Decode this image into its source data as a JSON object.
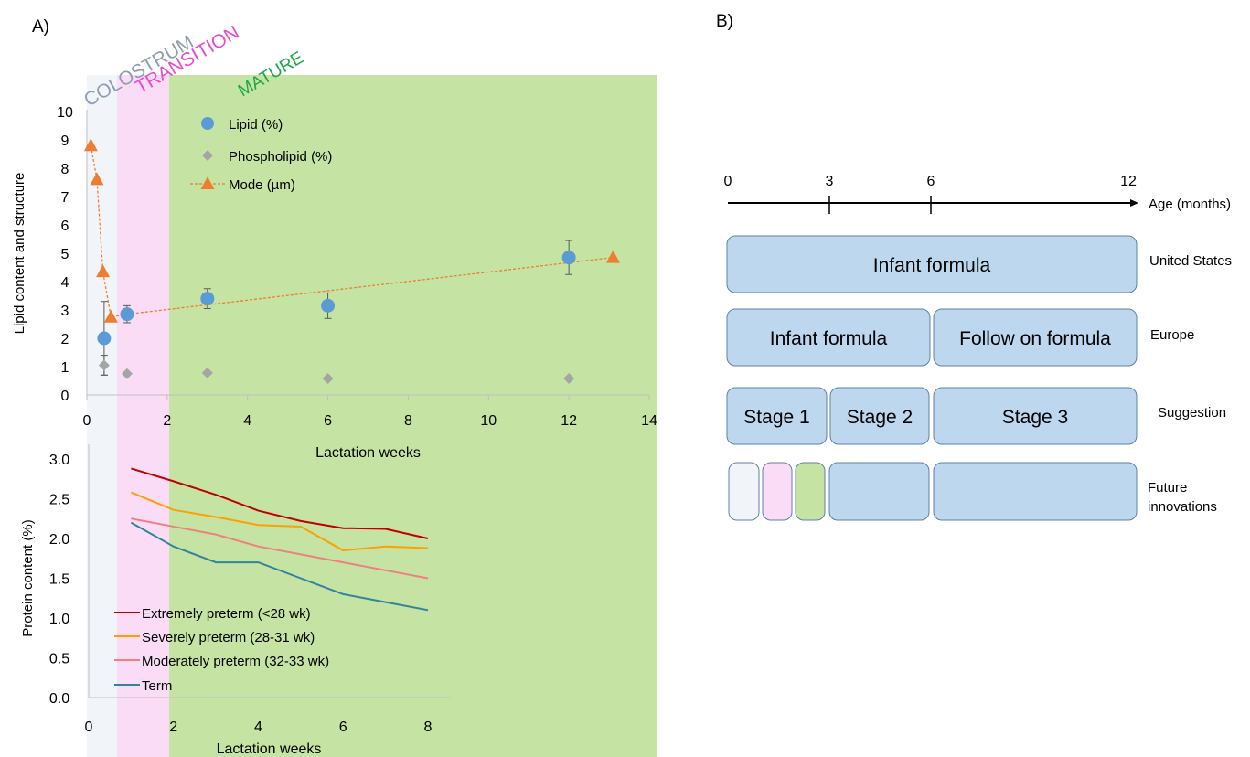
{
  "panel_a": {
    "label": "A)",
    "phases": [
      {
        "name": "COLOSTRUM",
        "color": "#f1f5fa",
        "text_color": "#8f9db3"
      },
      {
        "name": "TRANSITION",
        "color": "#fbdcf7",
        "text_color": "#e64ccf"
      },
      {
        "name": "MATURE",
        "color": "#c5e3a2",
        "text_color": "#1aa84a"
      }
    ]
  },
  "panel_b": {
    "label": "B)",
    "axis_label": "Age (months)",
    "ticks": [
      "0",
      "3",
      "6",
      "12"
    ],
    "box_color": "#bdd7ee",
    "box_border": "#5f80a6",
    "rows": [
      {
        "label": "United States",
        "boxes": [
          {
            "text": "Infant formula"
          }
        ]
      },
      {
        "label": "Europe",
        "boxes": [
          {
            "text": "Infant formula"
          },
          {
            "text": "Follow on formula"
          }
        ]
      },
      {
        "label": "Suggestion",
        "boxes": [
          {
            "text": "Stage 1"
          },
          {
            "text": "Stage 2"
          },
          {
            "text": "Stage 3"
          }
        ]
      },
      {
        "label": "Future innovations",
        "boxes": [
          {
            "text": "",
            "color": "#f1f5fa"
          },
          {
            "text": "",
            "color": "#fbdcf7"
          },
          {
            "text": "",
            "color": "#c5e3a2"
          },
          {
            "text": ""
          },
          {
            "text": ""
          }
        ]
      }
    ]
  },
  "chart_data": [
    {
      "type": "scatter",
      "xlabel": "Lactation weeks",
      "ylabel": "Lipid content and structure",
      "xlim": [
        0,
        14
      ],
      "ylim": [
        0,
        10
      ],
      "xticks": [
        "0",
        "2",
        "4",
        "6",
        "8",
        "10",
        "12",
        "14"
      ],
      "yticks": [
        "0",
        "1",
        "2",
        "3",
        "4",
        "5",
        "6",
        "7",
        "8",
        "9",
        "10"
      ],
      "legend_position": "top-left",
      "series": [
        {
          "name": "Lipid (%)",
          "marker": "circle",
          "color": "#5b9bd5",
          "x": [
            0.43,
            1,
            3,
            6,
            12
          ],
          "y": [
            2.0,
            2.85,
            3.4,
            3.15,
            4.85
          ],
          "error": [
            1.3,
            0.3,
            0.35,
            0.45,
            0.6
          ]
        },
        {
          "name": "Phospholipid (%)",
          "marker": "diamond",
          "color": "#a5a5a5",
          "x": [
            0.43,
            1,
            3,
            6,
            12
          ],
          "y": [
            1.05,
            0.75,
            0.78,
            0.58,
            0.58
          ],
          "error": [
            0.35,
            0,
            0,
            0,
            0
          ]
        },
        {
          "name": "Mode (µm)",
          "marker": "triangle",
          "color": "#ed7d31",
          "line": "dotted",
          "x": [
            0.1,
            0.25,
            0.4,
            0.6,
            13.1
          ],
          "y": [
            8.8,
            7.6,
            4.35,
            2.75,
            4.85
          ]
        }
      ],
      "trendline": {
        "x": [
          1,
          13.1
        ],
        "y": [
          2.85,
          4.85
        ],
        "color": "#ed7d31"
      }
    },
    {
      "type": "line",
      "xlabel": "Lactation weeks",
      "ylabel": "Protein content (%)",
      "xlim": [
        0,
        8
      ],
      "ylim": [
        0,
        3
      ],
      "xticks": [
        "0",
        "2",
        "4",
        "6",
        "8"
      ],
      "yticks": [
        "0.0",
        "0.5",
        "1.0",
        "1.5",
        "2.0",
        "2.5",
        "3.0"
      ],
      "legend_position": "bottom-left",
      "x": [
        1,
        2,
        3,
        4,
        5,
        6,
        7,
        8
      ],
      "series": [
        {
          "name": "Extremely preterm (<28 wk)",
          "color": "#c00000",
          "values": [
            2.88,
            2.72,
            2.55,
            2.35,
            2.22,
            2.13,
            2.12,
            2.0
          ]
        },
        {
          "name": "Severely preterm (28-31 wk)",
          "color": "#ffa000",
          "values": [
            2.58,
            2.36,
            2.27,
            2.17,
            2.15,
            1.85,
            1.9,
            1.88
          ]
        },
        {
          "name": "Moderately preterm (32-33 wk)",
          "color": "#f08080",
          "values": [
            2.25,
            2.15,
            2.05,
            1.9,
            1.8,
            1.7,
            1.6,
            1.5
          ]
        },
        {
          "name": "Term",
          "color": "#31849b",
          "values": [
            2.2,
            1.9,
            1.7,
            1.7,
            1.5,
            1.3,
            1.2,
            1.1
          ]
        }
      ]
    }
  ]
}
